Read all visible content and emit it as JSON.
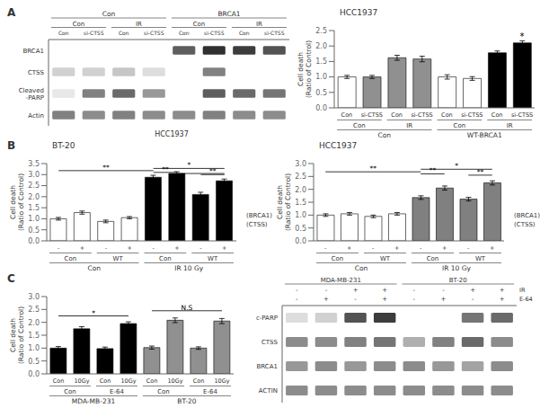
{
  "chart_data": [
    {
      "type": "heatmap",
      "panel_label": "A",
      "xlabel": "HCC1937",
      "rows": [
        "BRCA1",
        "CTSS",
        "Cleaved\n-PARP",
        "Actin"
      ],
      "columns": [
        "Con",
        "si-CTSS",
        "Con",
        "si-CTSS",
        "Con",
        "si-CTSS",
        "Con",
        "si-CTSS"
      ],
      "column_groups": [
        "Con",
        "IR",
        "Con",
        "IR"
      ],
      "column_supergroups": [
        "Con",
        "BRCA1"
      ],
      "cells": [
        [
          0,
          0,
          0,
          0,
          0.7,
          0.9,
          0.85,
          0.75
        ],
        [
          0.2,
          0.2,
          0.25,
          0.15,
          0,
          0.55,
          0,
          0
        ],
        [
          0.1,
          0.55,
          0.65,
          0.45,
          0,
          0.7,
          0.65,
          0.6
        ],
        [
          0.55,
          0.5,
          0.55,
          0.5,
          0.5,
          0.55,
          0.5,
          0.5
        ]
      ]
    },
    {
      "type": "bar",
      "title": "HCC1937",
      "categories": [
        "Con",
        "si-CTSS",
        "Con",
        "si-CTSS",
        "Con",
        "si-CTSS",
        "Con",
        "si-CTSS"
      ],
      "category_groups": [
        "Con",
        "IR",
        "Con",
        "IR"
      ],
      "category_supergroups": [
        "Con",
        "WT-BRCA1"
      ],
      "values": [
        1.0,
        1.0,
        1.62,
        1.58,
        1.0,
        0.95,
        1.78,
        2.1
      ],
      "errors": [
        0.05,
        0.05,
        0.08,
        0.09,
        0.07,
        0.06,
        0.06,
        0.07
      ],
      "colors": [
        "white",
        "#909090",
        "#909090",
        "#909090",
        "white",
        "white",
        "black",
        "black"
      ],
      "ylim": [
        0,
        2.5
      ],
      "yticks": [
        {
          "value": 0,
          "label": "0.0"
        },
        0.5,
        {
          "value": 1.0,
          "label": "1.0"
        },
        1.5,
        {
          "value": 2.0,
          "label": "2.0"
        },
        2.5
      ],
      "ylabel": "Cell death\n(Ratio of Control)",
      "brackets": [
        {
          "from": 7,
          "to": 7,
          "y": 2.18,
          "text": "*"
        }
      ]
    },
    {
      "type": "bar",
      "panel_label": "B",
      "title": "BT-20",
      "categories": [
        "-",
        "+",
        "-",
        "+",
        "-",
        "+",
        "-",
        "+"
      ],
      "category_groups": [
        "Con",
        "WT",
        "Con",
        "WT"
      ],
      "category_supergroups": [
        "Con",
        "IR 10 Gy"
      ],
      "values": [
        1.0,
        1.28,
        0.88,
        1.05,
        2.88,
        3.05,
        2.1,
        2.72
      ],
      "errors": [
        0.06,
        0.07,
        0.06,
        0.05,
        0.09,
        0.08,
        0.1,
        0.08
      ],
      "colors": [
        "white",
        "white",
        "white",
        "white",
        "black",
        "black",
        "black",
        "black"
      ],
      "ylim": [
        0,
        3.5
      ],
      "yticks": [
        {
          "value": 0,
          "label": "0.0"
        },
        0.5,
        {
          "value": 1.0,
          "label": "1.0"
        },
        1.5,
        {
          "value": 2.0,
          "label": "2.0"
        },
        2.5,
        {
          "value": 3.0,
          "label": "3.0"
        },
        3.5
      ],
      "ylabel": "Cell death\n(Ratio of Control)",
      "annotations": [
        "(BRCA1)",
        "(CTSS)"
      ],
      "brackets": [
        {
          "from": 0,
          "to": 4,
          "y": 3.18,
          "text": "**"
        },
        {
          "from": 4,
          "to": 7,
          "y": 3.28,
          "text": "*"
        },
        {
          "from": 4,
          "to": 5,
          "y": 3.1,
          "text": "**"
        },
        {
          "from": 5,
          "to": 7,
          "y": 3.05
        },
        {
          "from": 6,
          "to": 7,
          "y": 3.0,
          "text": "**"
        }
      ]
    },
    {
      "type": "bar",
      "title": "HCC1937",
      "categories": [
        "-",
        "+",
        "-",
        "+",
        "-",
        "+",
        "-",
        "+"
      ],
      "category_groups": [
        "Con",
        "WT",
        "Con",
        "WT"
      ],
      "category_supergroups": [
        "Con",
        "IR 10 Gy"
      ],
      "values": [
        1.0,
        1.05,
        0.95,
        1.05,
        1.68,
        2.05,
        1.62,
        2.25
      ],
      "errors": [
        0.05,
        0.05,
        0.05,
        0.05,
        0.07,
        0.08,
        0.07,
        0.08
      ],
      "colors": [
        "white",
        "white",
        "white",
        "white",
        "#808080",
        "#808080",
        "#808080",
        "#808080"
      ],
      "ylim": [
        0,
        3.0
      ],
      "yticks": [
        {
          "value": 0,
          "label": "0.0"
        },
        0.5,
        {
          "value": 1.0,
          "label": "1.0"
        },
        1.5,
        {
          "value": 2.0,
          "label": "2.0"
        },
        2.5,
        {
          "value": 3.0,
          "label": "3.0"
        }
      ],
      "ylabel": "Cell death\n(Ratio of Control)",
      "annotations": [
        "(BRCA1)",
        "(CTSS)"
      ],
      "brackets": [
        {
          "from": 0,
          "to": 4,
          "y": 2.68,
          "text": "**"
        },
        {
          "from": 4,
          "to": 7,
          "y": 2.78,
          "text": "*"
        },
        {
          "from": 4,
          "to": 5,
          "y": 2.6,
          "text": "**"
        },
        {
          "from": 6,
          "to": 7,
          "y": 2.55,
          "text": "**"
        }
      ]
    },
    {
      "type": "bar",
      "panel_label": "C",
      "categories": [
        "Con",
        "10Gy",
        "Con",
        "10Gy",
        "Con",
        "10Gy",
        "Con",
        "10Gy"
      ],
      "category_groups": [
        "Con",
        "E-64",
        "Con",
        "E-64"
      ],
      "category_supergroups": [
        "MDA-MB-231",
        "BT-20"
      ],
      "values": [
        1.0,
        1.75,
        0.98,
        1.95,
        1.02,
        2.08,
        1.0,
        2.05
      ],
      "errors": [
        0.06,
        0.08,
        0.06,
        0.07,
        0.06,
        0.09,
        0.05,
        0.1
      ],
      "colors": [
        "black",
        "black",
        "black",
        "black",
        "#909090",
        "#909090",
        "#909090",
        "#909090"
      ],
      "ylim": [
        0,
        3.0
      ],
      "yticks": [
        {
          "value": 0,
          "label": "0.0"
        },
        0.5,
        {
          "value": 1.0,
          "label": "1.0"
        },
        1.5,
        {
          "value": 2.0,
          "label": "2.0"
        },
        2.5,
        {
          "value": 3.0,
          "label": "3.0"
        }
      ],
      "ylabel": "Cell death\n(Ratio of Control)",
      "brackets": [
        {
          "from": 0,
          "to": 3,
          "y": 2.25,
          "text": "*"
        },
        {
          "from": 4,
          "to": 7,
          "y": 2.45,
          "text": "N.S"
        }
      ]
    },
    {
      "type": "heatmap",
      "rows": [
        "c-PARP",
        "CTSS",
        "BRCA1",
        "ACTIN"
      ],
      "column_markers": [
        {
          "name": "IR",
          "values": [
            "-",
            "-",
            "+",
            "+",
            "-",
            "-",
            "+",
            "+"
          ]
        },
        {
          "name": "E-64",
          "values": [
            "-",
            "+",
            "-",
            "+",
            "-",
            "+",
            "-",
            "+"
          ]
        }
      ],
      "column_groups": [
        "MDA-MB-231",
        "BT-20"
      ],
      "cells": [
        [
          0.15,
          0.2,
          0.75,
          0.85,
          0,
          0,
          0.6,
          0.65
        ],
        [
          0.5,
          0.5,
          0.55,
          0.6,
          0.35,
          0.55,
          0.65,
          0.5
        ],
        [
          0.45,
          0.5,
          0.45,
          0.5,
          0.5,
          0.45,
          0.4,
          0.5
        ],
        [
          0.5,
          0.5,
          0.5,
          0.5,
          0.5,
          0.5,
          0.5,
          0.5
        ]
      ]
    }
  ]
}
